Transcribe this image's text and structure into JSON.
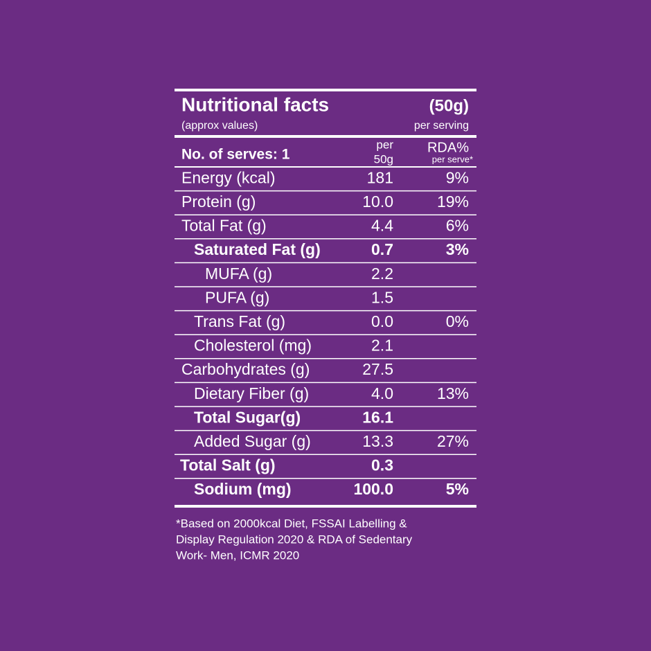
{
  "header": {
    "title": "Nutritional facts",
    "subtitle": "(approx values)",
    "serving": "(50g)",
    "serving_note": "per serving"
  },
  "columns": {
    "serves": "No. of serves: 1",
    "per_top": "per",
    "per_bottom": "50g",
    "rda_top": "RDA%",
    "rda_bottom": "per serve*"
  },
  "rows": [
    {
      "name": "Energy (kcal)",
      "value": "181",
      "rda": "9%"
    },
    {
      "name": "Protein (g)",
      "value": "10.0",
      "rda": "19%"
    },
    {
      "name": "Total Fat (g)",
      "value": "4.4",
      "rda": "6%"
    },
    {
      "name": "Saturated Fat (g)",
      "value": "0.7",
      "rda": "3%"
    },
    {
      "name": "MUFA (g)",
      "value": "2.2"
    },
    {
      "name": "PUFA (g)",
      "value": "1.5"
    },
    {
      "name": "Trans Fat (g)",
      "value": "0.0",
      "rda": "0%"
    },
    {
      "name": "Cholesterol (mg)",
      "value": "2.1"
    },
    {
      "name": "Carbohydrates (g)",
      "value": "27.5"
    },
    {
      "name": "Dietary Fiber (g)",
      "value": "4.0",
      "rda": "13%"
    },
    {
      "name": "Total Sugar(g)",
      "value": "16.1"
    },
    {
      "name": "Added Sugar (g)",
      "value": "13.3",
      "rda": "27%"
    },
    {
      "name": "Total Salt (g)",
      "value": "0.3"
    },
    {
      "name": "Sodium (mg)",
      "value": "100.0",
      "rda": "5%"
    }
  ],
  "footnote": [
    "*Based on 2000kcal Diet, FSSAI Labelling &",
    "Display Regulation 2020 & RDA of Sedentary",
    "Work- Men, ICMR 2020"
  ]
}
